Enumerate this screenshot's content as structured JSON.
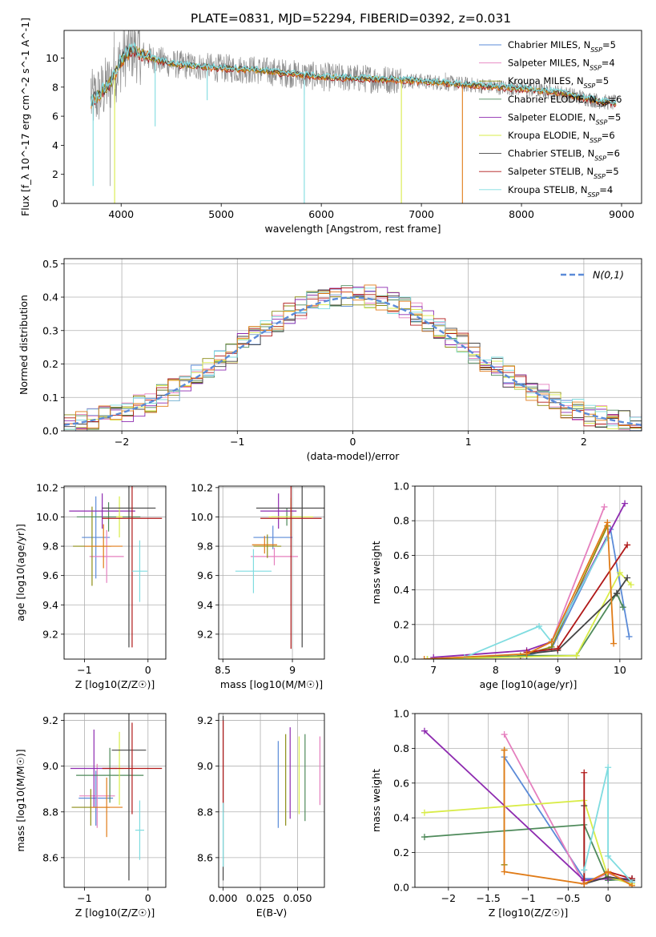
{
  "figure_title": "PLATE=0831, MJD=52294, FIBERID=0392, z=0.031",
  "colors": {
    "Chabrier MILES": "#5b8bd8",
    "Salpeter MILES": "#e57fbe",
    "Kroupa MILES": "#8c8c14",
    "Chabrier ELODIE": "#4e8a5a",
    "Salpeter ELODIE": "#8e2bb0",
    "Kroupa ELODIE": "#d9ec48",
    "Chabrier STELIB": "#444444",
    "Salpeter STELIB": "#b01818",
    "Kroupa STELIB": "#7fdce0",
    "orange": "#e07b17",
    "normal": "#5b8bd8"
  },
  "chart_data": [
    {
      "id": "spectrum",
      "type": "line",
      "title": "PLATE=0831, MJD=52294, FIBERID=0392, z=0.031",
      "xlabel": "wavelength [Angstrom, rest frame]",
      "ylabel": "Flux [f_λ 10^-17 erg cm^-2 s^-1 A^-1]",
      "xlim": [
        3430,
        9200
      ],
      "ylim": [
        0,
        11.9
      ],
      "xticks": [
        4000,
        5000,
        6000,
        7000,
        8000,
        9000
      ],
      "yticks": [
        0,
        2,
        4,
        6,
        8,
        10
      ],
      "legend": [
        {
          "name": "Chabrier MILES",
          "nssp": "5"
        },
        {
          "name": "Salpeter MILES",
          "nssp": "4"
        },
        {
          "name": "Kroupa MILES",
          "nssp": "5"
        },
        {
          "name": "Chabrier ELODIE",
          "nssp": "6"
        },
        {
          "name": "Salpeter ELODIE",
          "nssp": "5"
        },
        {
          "name": "Kroupa ELODIE",
          "nssp": "6"
        },
        {
          "name": "Chabrier STELIB",
          "nssp": "6"
        },
        {
          "name": "Salpeter STELIB",
          "nssp": "5"
        },
        {
          "name": "Kroupa STELIB",
          "nssp": "4"
        }
      ],
      "legend_placement": "upper right",
      "continuum": [
        [
          3700,
          7.0
        ],
        [
          3800,
          7.6
        ],
        [
          3900,
          8.4
        ],
        [
          4000,
          9.8
        ],
        [
          4100,
          10.6
        ],
        [
          4300,
          10.0
        ],
        [
          4500,
          9.6
        ],
        [
          4800,
          9.4
        ],
        [
          5000,
          9.3
        ],
        [
          5300,
          9.2
        ],
        [
          5600,
          9.0
        ],
        [
          6000,
          8.7
        ],
        [
          6400,
          8.6
        ],
        [
          6800,
          8.5
        ],
        [
          7200,
          8.3
        ],
        [
          7600,
          8.1
        ],
        [
          8000,
          7.9
        ],
        [
          8400,
          7.6
        ],
        [
          8800,
          7.0
        ],
        [
          8950,
          6.9
        ]
      ],
      "data_spikes": [
        [
          3700,
          8.6
        ],
        [
          3890,
          1.2
        ],
        [
          3930,
          11.8
        ],
        [
          4110,
          10.5
        ],
        [
          5830,
          7.5
        ],
        [
          6080,
          9.5
        ],
        [
          6560,
          8.5
        ],
        [
          7240,
          9.0
        ],
        [
          7600,
          7.8
        ]
      ],
      "model_dips": [
        [
          3720,
          1.2
        ],
        [
          3935,
          0.0
        ],
        [
          4340,
          5.3
        ],
        [
          4860,
          7.1
        ],
        [
          5830,
          0.0
        ],
        [
          6800,
          0.0
        ],
        [
          7410,
          0.0
        ]
      ]
    },
    {
      "id": "residuals",
      "type": "histogram",
      "xlabel": "(data-model)/error",
      "ylabel": "Normed distribution",
      "xlim": [
        -2.5,
        2.5
      ],
      "ylim": [
        0,
        0.515
      ],
      "xticks": [
        -2,
        -1,
        0,
        1,
        2
      ],
      "yticks": [
        0.0,
        0.1,
        0.2,
        0.3,
        0.4,
        0.5
      ],
      "grid": true,
      "normal_label": "N(0,1)",
      "bin_width": 0.1
    },
    {
      "id": "age_vs_Z",
      "type": "errorbar",
      "xlabel": "Z [log10(Z/Z☉)]",
      "ylabel": "age  [log10(age/yr)]",
      "xlim": [
        -1.32,
        0.28
      ],
      "ylim": [
        9.03,
        10.21
      ],
      "xticks": [
        -1,
        0
      ],
      "yticks": [
        9.2,
        9.4,
        9.6,
        9.8,
        10.0,
        10.2
      ],
      "points": [
        {
          "series": "Chabrier MILES",
          "x": -0.82,
          "xerr": 0.22,
          "y": 9.86,
          "yerr": 0.28
        },
        {
          "series": "Salpeter MILES",
          "x": -0.65,
          "xerr": 0.27,
          "y": 9.73,
          "yerr": 0.18
        },
        {
          "series": "Kroupa MILES",
          "x": -0.88,
          "xerr": 0.3,
          "y": 9.8,
          "yerr": 0.27
        },
        {
          "series": "Chabrier ELODIE",
          "x": -0.62,
          "xerr": 0.5,
          "y": 10.0,
          "yerr": 0.1
        },
        {
          "series": "Salpeter ELODIE",
          "x": -0.72,
          "xerr": 0.52,
          "y": 10.04,
          "yerr": 0.12
        },
        {
          "series": "Kroupa ELODIE",
          "x": -0.45,
          "xerr": 0.05,
          "y": 10.0,
          "yerr": 0.14
        },
        {
          "series": "Chabrier STELIB",
          "x": -0.3,
          "xerr": 0.42,
          "y": 10.06,
          "yerr": 0.95
        },
        {
          "series": "Salpeter STELIB",
          "x": -0.25,
          "xerr": 0.47,
          "y": 9.99,
          "yerr": 0.88
        },
        {
          "series": "Kroupa STELIB",
          "x": -0.13,
          "xerr": 0.12,
          "y": 9.63,
          "yerr": 0.21
        },
        {
          "series": "orange",
          "x": -0.7,
          "xerr": 0.3,
          "y": 9.8,
          "yerr": 0.15
        }
      ]
    },
    {
      "id": "age_vs_mass",
      "type": "errorbar",
      "xlabel": "mass [log10(M/M☉)]",
      "xlim": [
        8.47,
        9.23
      ],
      "ylim": [
        9.03,
        10.21
      ],
      "xticks": [
        8.5,
        9.0
      ],
      "yticks": [
        9.2,
        9.4,
        9.6,
        9.8,
        10.0,
        10.2
      ],
      "points": [
        {
          "series": "Chabrier MILES",
          "x": 8.86,
          "xerr": 0.14,
          "y": 9.86,
          "yerr": 0.08
        },
        {
          "series": "Salpeter MILES",
          "x": 8.87,
          "xerr": 0.17,
          "y": 9.73,
          "yerr": 0.06
        },
        {
          "series": "Kroupa MILES",
          "x": 8.82,
          "xerr": 0.1,
          "y": 9.8,
          "yerr": 0.08
        },
        {
          "series": "Chabrier ELODIE",
          "x": 8.96,
          "xerr": 0.11,
          "y": 10.0,
          "yerr": 0.06
        },
        {
          "series": "Salpeter ELODIE",
          "x": 8.9,
          "xerr": 0.13,
          "y": 10.04,
          "yerr": 0.12
        },
        {
          "series": "Kroupa ELODIE",
          "x": 8.99,
          "xerr": 0.16,
          "y": 10.0,
          "yerr": 0.13
        },
        {
          "series": "Chabrier STELIB",
          "x": 9.07,
          "xerr": 0.33,
          "y": 10.06,
          "yerr": 0.95
        },
        {
          "series": "Salpeter STELIB",
          "x": 8.99,
          "xerr": 0.22,
          "y": 9.99,
          "yerr": 0.89
        },
        {
          "series": "Kroupa STELIB",
          "x": 8.72,
          "xerr": 0.13,
          "y": 9.63,
          "yerr": 0.15
        },
        {
          "series": "orange",
          "x": 8.8,
          "xerr": 0.09,
          "y": 9.81,
          "yerr": 0.06
        }
      ]
    },
    {
      "id": "weight_vs_age",
      "type": "line",
      "xlabel": "age  [log10(age/yr)]",
      "ylabel": "mass weight",
      "xlim": [
        6.7,
        10.35
      ],
      "ylim": [
        0,
        1
      ],
      "xticks": [
        7,
        8,
        9,
        10
      ],
      "yticks": [
        0.0,
        0.2,
        0.4,
        0.6,
        0.8,
        1.0
      ],
      "grid": true,
      "series": [
        {
          "name": "Chabrier MILES",
          "points": [
            [
              8.5,
              0.02
            ],
            [
              8.9,
              0.06
            ],
            [
              9.85,
              0.75
            ],
            [
              10.15,
              0.13
            ]
          ]
        },
        {
          "name": "Salpeter MILES",
          "points": [
            [
              8.4,
              0.01
            ],
            [
              8.9,
              0.1
            ],
            [
              9.75,
              0.88
            ]
          ]
        },
        {
          "name": "Kroupa MILES",
          "points": [
            [
              8.4,
              0.02
            ],
            [
              8.9,
              0.07
            ],
            [
              9.8,
              0.77
            ]
          ]
        },
        {
          "name": "Chabrier ELODIE",
          "points": [
            [
              6.9,
              0.0
            ],
            [
              8.5,
              0.02
            ],
            [
              9.3,
              0.02
            ],
            [
              9.95,
              0.38
            ],
            [
              10.05,
              0.3
            ]
          ]
        },
        {
          "name": "Salpeter ELODIE",
          "points": [
            [
              7.0,
              0.01
            ],
            [
              8.5,
              0.05
            ],
            [
              8.9,
              0.1
            ],
            [
              10.08,
              0.9
            ]
          ]
        },
        {
          "name": "Kroupa ELODIE",
          "points": [
            [
              6.9,
              0.0
            ],
            [
              9.3,
              0.02
            ],
            [
              10.0,
              0.5
            ],
            [
              10.18,
              0.43
            ]
          ]
        },
        {
          "name": "Chabrier STELIB",
          "points": [
            [
              8.5,
              0.03
            ],
            [
              9.0,
              0.05
            ],
            [
              9.95,
              0.38
            ],
            [
              10.12,
              0.47
            ]
          ]
        },
        {
          "name": "Salpeter STELIB",
          "points": [
            [
              8.5,
              0.04
            ],
            [
              9.0,
              0.06
            ],
            [
              10.12,
              0.66
            ]
          ]
        },
        {
          "name": "Kroupa STELIB",
          "points": [
            [
              7.5,
              0.01
            ],
            [
              8.7,
              0.19
            ],
            [
              8.9,
              0.1
            ],
            [
              9.8,
              0.7
            ]
          ]
        },
        {
          "name": "orange",
          "points": [
            [
              6.85,
              0.0
            ],
            [
              8.5,
              0.03
            ],
            [
              8.9,
              0.1
            ],
            [
              9.8,
              0.79
            ],
            [
              9.9,
              0.09
            ]
          ]
        }
      ]
    },
    {
      "id": "mass_vs_Z",
      "type": "errorbar",
      "xlabel": "Z [log10(Z/Z☉)]",
      "ylabel": "mass [log10(M/M☉)]",
      "xlim": [
        -1.32,
        0.28
      ],
      "ylim": [
        8.47,
        9.23
      ],
      "xticks": [
        -1,
        0
      ],
      "yticks": [
        8.6,
        8.8,
        9.0,
        9.2
      ],
      "points": [
        {
          "series": "Chabrier MILES",
          "x": -0.82,
          "xerr": 0.27,
          "y": 8.86,
          "yerr": 0.12
        },
        {
          "series": "Salpeter MILES",
          "x": -0.8,
          "xerr": 0.28,
          "y": 8.87,
          "yerr": 0.14
        },
        {
          "series": "Kroupa MILES",
          "x": -0.9,
          "xerr": 0.3,
          "y": 8.82,
          "yerr": 0.08
        },
        {
          "series": "Chabrier ELODIE",
          "x": -0.6,
          "xerr": 0.53,
          "y": 8.96,
          "yerr": 0.12
        },
        {
          "series": "Salpeter ELODIE",
          "x": -0.85,
          "xerr": 0.37,
          "y": 8.99,
          "yerr": 0.17
        },
        {
          "series": "Kroupa ELODIE",
          "x": -0.45,
          "xerr": 0.07,
          "y": 8.99,
          "yerr": 0.16
        },
        {
          "series": "Chabrier STELIB",
          "x": -0.3,
          "xerr": 0.27,
          "y": 9.07,
          "yerr": 0.57
        },
        {
          "series": "Salpeter STELIB",
          "x": -0.25,
          "xerr": 0.47,
          "y": 8.99,
          "yerr": 0.2
        },
        {
          "series": "Kroupa STELIB",
          "x": -0.13,
          "xerr": 0.07,
          "y": 8.72,
          "yerr": 0.13
        },
        {
          "series": "orange",
          "x": -0.65,
          "xerr": 0.25,
          "y": 8.82,
          "yerr": 0.13
        }
      ]
    },
    {
      "id": "mass_vs_EBV",
      "type": "errorbar",
      "xlabel": "E(B-V)",
      "xlim": [
        -0.003,
        0.068
      ],
      "ylim": [
        8.47,
        9.23
      ],
      "xticks": [
        0.0,
        0.025,
        0.05
      ],
      "xticklabels": [
        "0.000",
        "0.025",
        "0.050"
      ],
      "yticks": [
        8.6,
        8.8,
        9.0,
        9.2
      ],
      "points": [
        {
          "series": "Chabrier MILES",
          "x": 0.037,
          "y": 8.92,
          "yerr": 0.19
        },
        {
          "series": "Salpeter MILES",
          "x": 0.065,
          "y": 8.98,
          "yerr": 0.15
        },
        {
          "series": "Kroupa MILES",
          "x": 0.042,
          "y": 8.94,
          "yerr": 0.2
        },
        {
          "series": "Chabrier ELODIE",
          "x": 0.055,
          "y": 8.95,
          "yerr": 0.19
        },
        {
          "series": "Salpeter ELODIE",
          "x": 0.045,
          "y": 8.97,
          "yerr": 0.2
        },
        {
          "series": "Kroupa ELODIE",
          "x": 0.051,
          "y": 8.96,
          "yerr": 0.17
        },
        {
          "series": "Chabrier STELIB",
          "x": 0.0,
          "y": 8.86,
          "yerr": 0.36
        },
        {
          "series": "Salpeter STELIB",
          "x": 0.0,
          "y": 9.0,
          "yerr": 0.2
        },
        {
          "series": "Kroupa STELIB",
          "x": 0.0,
          "y": 8.7,
          "yerr": 0.14
        }
      ]
    },
    {
      "id": "weight_vs_Z",
      "type": "line",
      "xlabel": "Z [log10(Z/Z☉)]",
      "ylabel": "mass weight",
      "xlim": [
        -2.42,
        0.42
      ],
      "ylim": [
        0,
        1
      ],
      "xticks": [
        -2.0,
        -1.5,
        -1.0,
        -0.5,
        0.0
      ],
      "yticks": [
        0.0,
        0.2,
        0.4,
        0.6,
        0.8,
        1.0
      ],
      "grid": true,
      "series": [
        {
          "name": "Chabrier MILES",
          "points": [
            [
              -1.3,
              0.75
            ],
            [
              -0.3,
              0.05
            ],
            [
              0.0,
              0.05
            ],
            [
              0.3,
              0.03
            ]
          ]
        },
        {
          "name": "Salpeter MILES",
          "points": [
            [
              -1.3,
              0.88
            ],
            [
              -0.3,
              0.02
            ],
            [
              0.0,
              0.08
            ],
            [
              0.3,
              0.03
            ]
          ]
        },
        {
          "name": "Kroupa MILES",
          "points": [
            [
              -1.3,
              0.79
            ],
            [
              -1.3,
              0.13
            ]
          ]
        },
        {
          "name": "Chabrier ELODIE",
          "points": [
            [
              -2.3,
              0.29
            ],
            [
              -0.3,
              0.36
            ],
            [
              0.0,
              0.04
            ],
            [
              0.3,
              0.05
            ]
          ]
        },
        {
          "name": "Salpeter ELODIE",
          "points": [
            [
              -2.3,
              0.9
            ],
            [
              -0.3,
              0.04
            ],
            [
              0.0,
              0.05
            ],
            [
              0.3,
              0.05
            ]
          ]
        },
        {
          "name": "Kroupa ELODIE",
          "points": [
            [
              -2.3,
              0.43
            ],
            [
              -0.3,
              0.5
            ],
            [
              0.0,
              0.06
            ],
            [
              0.3,
              0.02
            ]
          ]
        },
        {
          "name": "Chabrier STELIB",
          "points": [
            [
              -0.3,
              0.47
            ],
            [
              -0.3,
              0.02
            ],
            [
              0.0,
              0.06
            ],
            [
              0.3,
              0.04
            ]
          ]
        },
        {
          "name": "Salpeter STELIB",
          "points": [
            [
              -0.3,
              0.66
            ],
            [
              -0.3,
              0.02
            ],
            [
              0.0,
              0.09
            ],
            [
              0.3,
              0.05
            ]
          ]
        },
        {
          "name": "Kroupa STELIB",
          "points": [
            [
              -0.3,
              0.1
            ],
            [
              0.0,
              0.69
            ],
            [
              0.0,
              0.18
            ],
            [
              0.3,
              0.03
            ]
          ]
        },
        {
          "name": "orange",
          "points": [
            [
              -1.3,
              0.79
            ],
            [
              -1.3,
              0.09
            ],
            [
              -0.3,
              0.02
            ],
            [
              0.0,
              0.09
            ],
            [
              0.3,
              0.01
            ]
          ]
        }
      ]
    }
  ]
}
